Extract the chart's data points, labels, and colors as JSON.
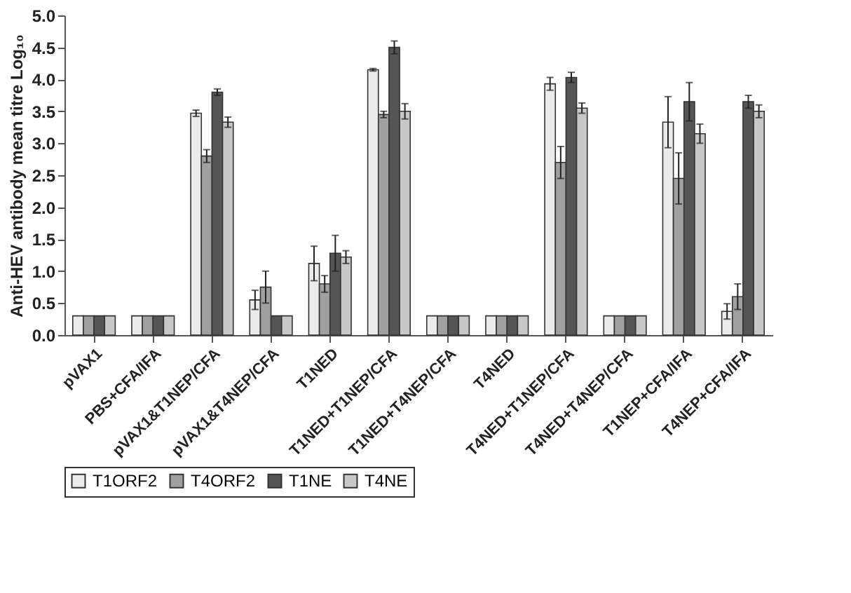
{
  "chart_data": {
    "type": "bar",
    "ylabel": "Anti-HEV antibody mean titre Log₁₀",
    "categories": [
      "pVAX1",
      "PBS+CFA/IFA",
      "pVAX1&T1NEP/CFA",
      "pVAX1&T4NEP/CFA",
      "T1NED",
      "T1NED+T1NEP/CFA",
      "T1NED+T4NEP/CFA",
      "T4NED",
      "T4NED+T1NEP/CFA",
      "T4NED+T4NEP/CFA",
      "T1NEP+CFA/IFA",
      "T4NEP+CFA/IFA"
    ],
    "series": [
      {
        "name": "T1ORF2",
        "color": "#ebebeb",
        "values": [
          0.3,
          0.3,
          3.47,
          0.55,
          1.12,
          4.15,
          0.3,
          0.3,
          3.93,
          0.3,
          3.33,
          0.37
        ],
        "errors": [
          null,
          null,
          0.05,
          0.15,
          0.27,
          0.02,
          null,
          null,
          0.1,
          null,
          0.4,
          0.12
        ]
      },
      {
        "name": "T4ORF2",
        "color": "#a0a0a0",
        "values": [
          0.3,
          0.3,
          2.8,
          0.75,
          0.8,
          3.45,
          0.3,
          0.3,
          2.7,
          0.3,
          2.45,
          0.6
        ],
        "errors": [
          null,
          null,
          0.1,
          0.25,
          0.13,
          0.05,
          null,
          null,
          0.25,
          null,
          0.4,
          0.2
        ]
      },
      {
        "name": "T1NE",
        "color": "#555555",
        "values": [
          0.3,
          0.3,
          3.8,
          0.3,
          1.28,
          4.5,
          0.3,
          0.3,
          4.03,
          0.3,
          3.65,
          3.65
        ],
        "errors": [
          null,
          null,
          0.05,
          null,
          0.28,
          0.1,
          null,
          null,
          0.08,
          null,
          0.3,
          0.1
        ]
      },
      {
        "name": "T4NE",
        "color": "#c8c8c8",
        "values": [
          0.3,
          0.3,
          3.33,
          0.3,
          1.22,
          3.5,
          0.3,
          0.3,
          3.55,
          0.3,
          3.15,
          3.5
        ],
        "errors": [
          null,
          null,
          0.08,
          null,
          0.1,
          0.12,
          null,
          null,
          0.08,
          null,
          0.15,
          0.1
        ]
      }
    ],
    "ylim": [
      0,
      5
    ],
    "yticks": [
      {
        "value": 0,
        "label": "0.0"
      },
      0.5,
      {
        "value": 1,
        "label": "1.0"
      },
      1.5,
      {
        "value": 2,
        "label": "2.0"
      },
      2.5,
      {
        "value": 3,
        "label": "3.0"
      },
      3.5,
      {
        "value": 4,
        "label": "4.0"
      },
      4.5,
      {
        "value": 5,
        "label": "5.0"
      }
    ],
    "grid": false,
    "legend": "bottom"
  }
}
